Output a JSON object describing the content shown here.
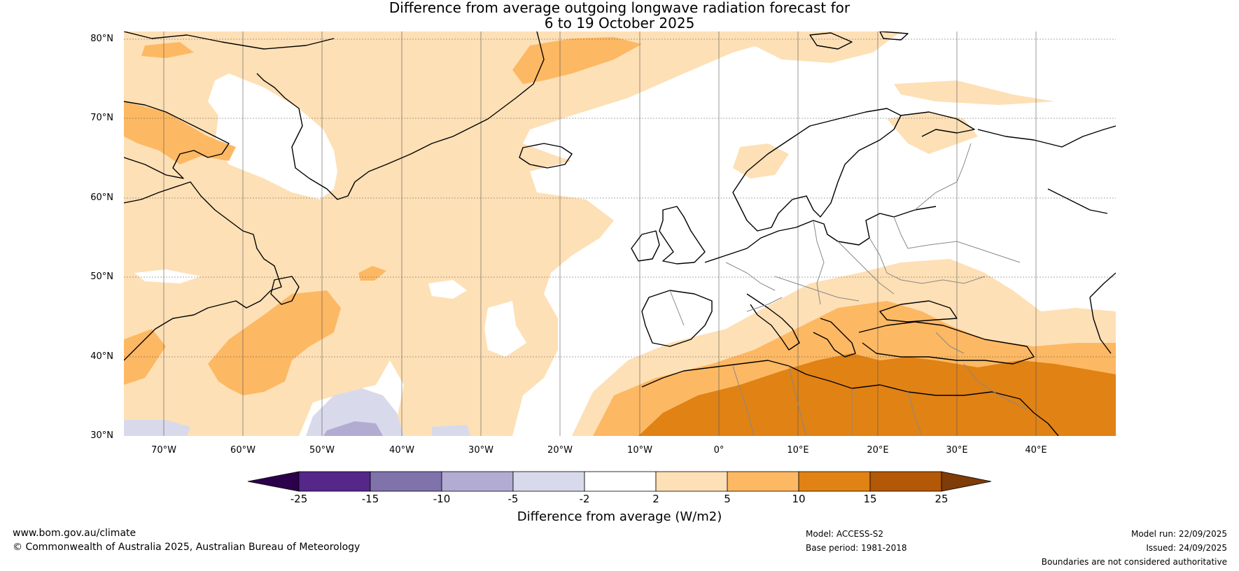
{
  "title": {
    "line1": "Difference from average outgoing longwave radiation forecast for",
    "line2": "6 to 19 October 2025"
  },
  "axes": {
    "lat_labels": [
      "80°N",
      "70°N",
      "60°N",
      "50°N",
      "40°N",
      "30°N"
    ],
    "lon_labels": [
      "70°W",
      "60°W",
      "50°W",
      "40°W",
      "30°W",
      "20°W",
      "10°W",
      "0°",
      "10°E",
      "20°E",
      "30°E",
      "40°E"
    ],
    "lat_range": [
      30,
      81
    ],
    "lon_range": [
      -75,
      50
    ]
  },
  "legend": {
    "label": "Difference from average (W/m2)",
    "ticks": [
      "-25",
      "-15",
      "-10",
      "-5",
      "-2",
      "2",
      "5",
      "10",
      "15",
      "25"
    ],
    "colors": [
      "#2d004b",
      "#542788",
      "#8073ac",
      "#b2abd2",
      "#d8daeb",
      "#ffffff",
      "#fee0b6",
      "#fdb863",
      "#e08214",
      "#b35806",
      "#7f3b08"
    ]
  },
  "footer": {
    "website": "www.bom.gov.au/climate",
    "copyright": "© Commonwealth of Australia 2025, Australian Bureau of Meteorology",
    "model": "Model: ACCESS-S2",
    "base_period": "Base period: 1981-2018",
    "model_run": "Model run: 22/09/2025",
    "issued": "Issued: 24/09/2025",
    "disclaimer": "Boundaries are not considered authoritative"
  }
}
